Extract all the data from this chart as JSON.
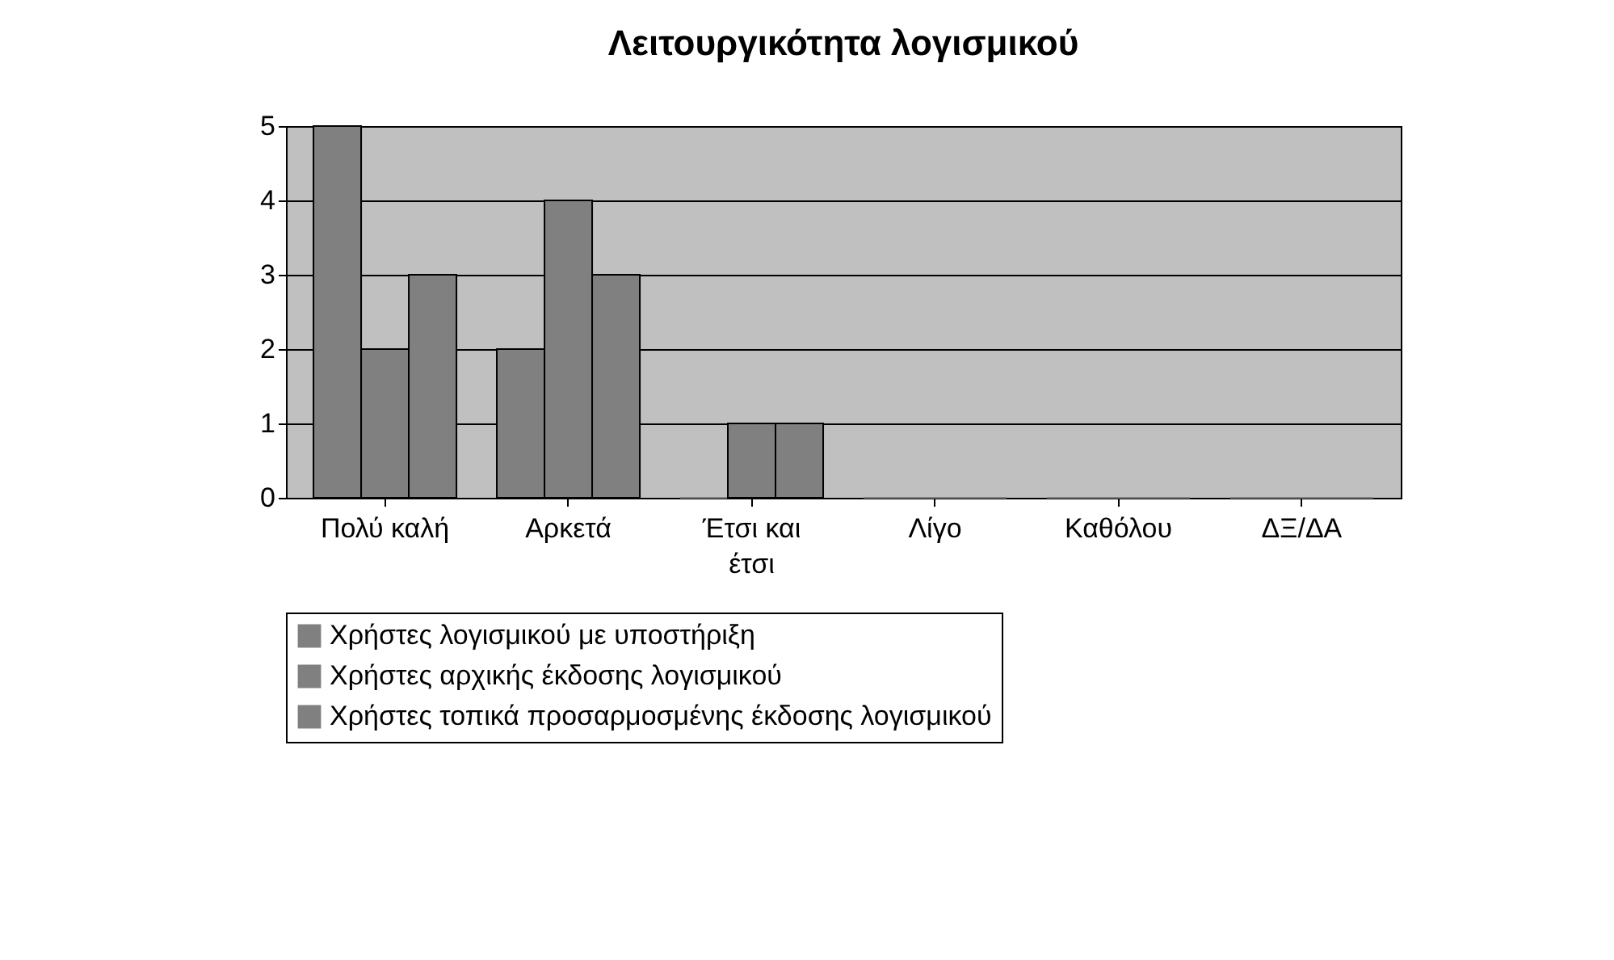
{
  "chart_data": {
    "type": "bar",
    "title": "Λειτουργικότητα λογισμικού",
    "categories": [
      "Πολύ καλή",
      "Αρκετά",
      "Έτσι και έτσι",
      "Λίγο",
      "Καθόλου",
      "ΔΞ/ΔΑ"
    ],
    "series": [
      {
        "name": "Χρήστες λογισμικού με υποστήριξη",
        "color": "#808080",
        "values": [
          5,
          2,
          0,
          0,
          0,
          0
        ]
      },
      {
        "name": "Χρήστες αρχικής έκδοσης λογισμικού",
        "color": "#808080",
        "values": [
          2,
          4,
          1,
          0,
          0,
          0
        ]
      },
      {
        "name": "Χρήστες τοπικά προσαρμοσμένης έκδοσης λογισμικού",
        "color": "#808080",
        "values": [
          3,
          3,
          1,
          0,
          0,
          0
        ]
      }
    ],
    "ylim": [
      0,
      5
    ],
    "yticks": [
      0,
      1,
      2,
      3,
      4,
      5
    ],
    "grid": "y",
    "legend": "bottom"
  }
}
